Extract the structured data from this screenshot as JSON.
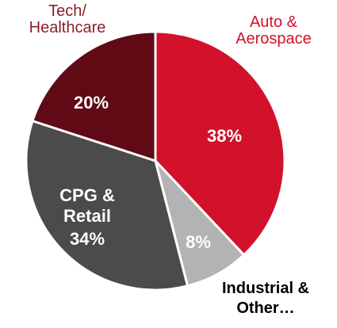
{
  "chart_data": {
    "type": "pie",
    "categories": [
      "Auto & Aerospace",
      "Industrial & Other…",
      "CPG & Retail",
      "Tech/ Healthcare"
    ],
    "values": [
      38,
      8,
      34,
      20
    ],
    "value_labels": [
      "38%",
      "8%",
      "34%",
      "20%"
    ],
    "colors": [
      "#d2112b",
      "#b3b3b3",
      "#4b4b4b",
      "#5f0a14"
    ]
  }
}
